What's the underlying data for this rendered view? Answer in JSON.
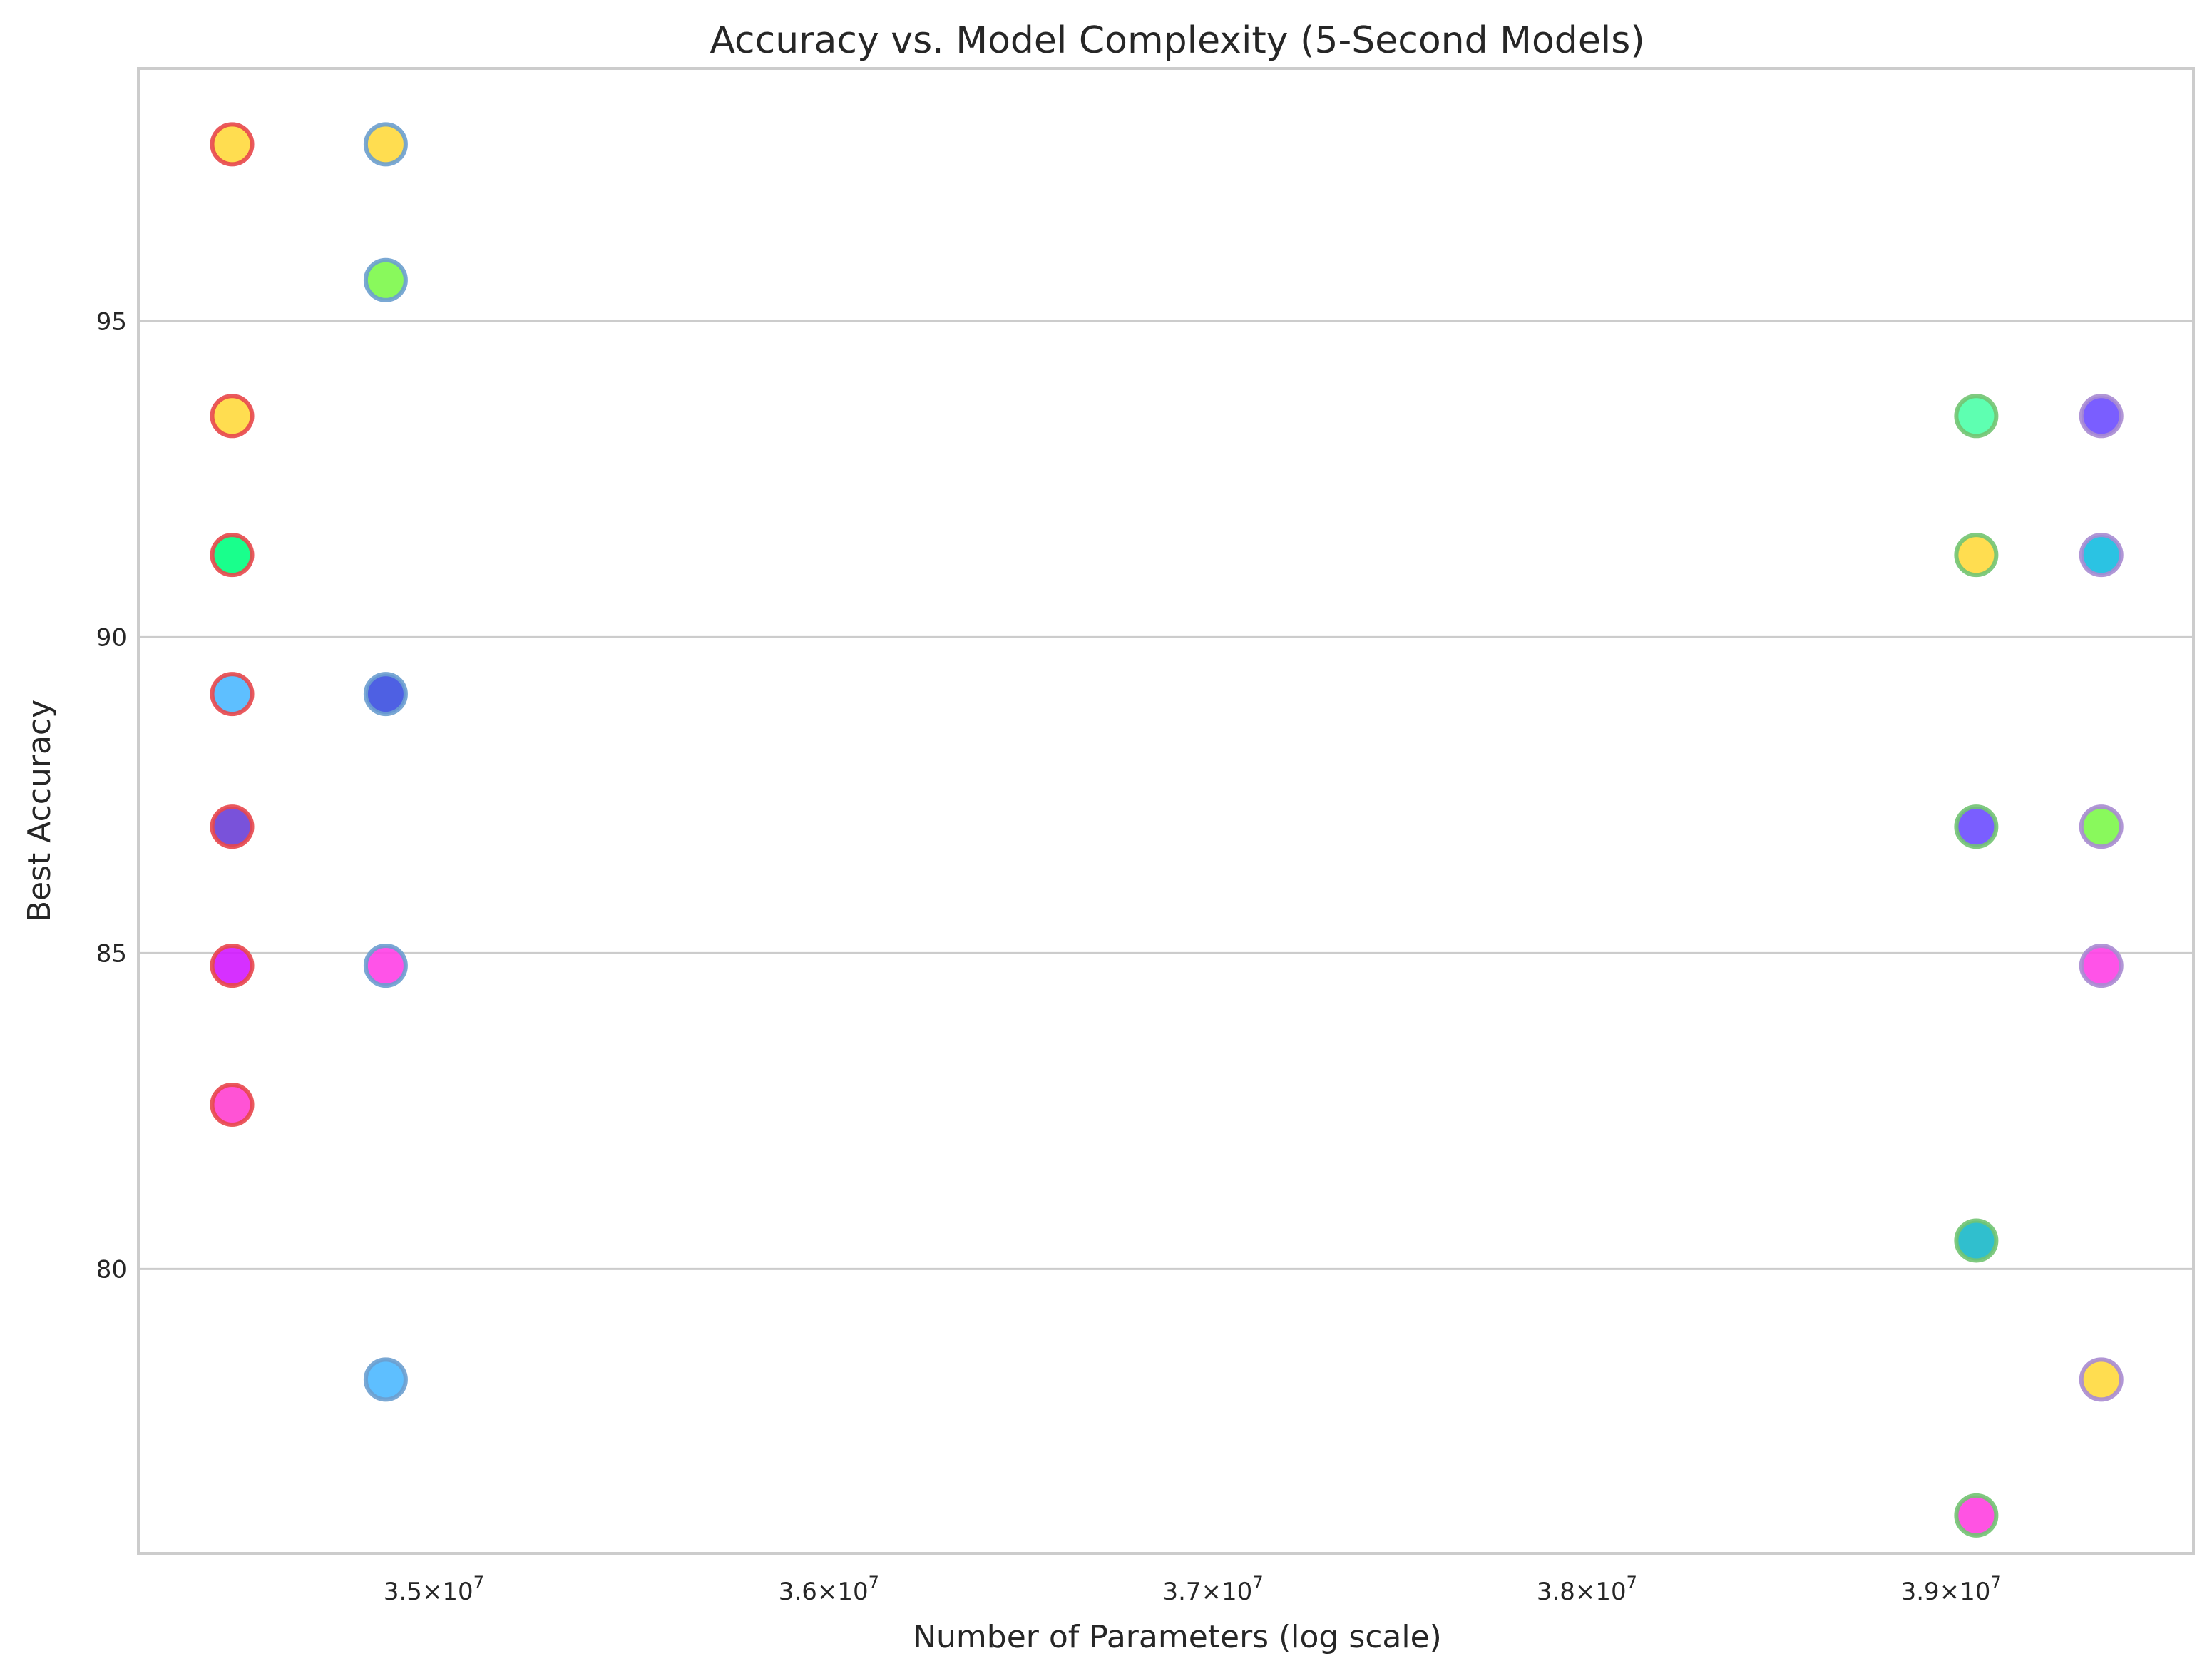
{
  "chart_data": {
    "type": "scatter",
    "title": "Accuracy vs. Model Complexity (5-Second Models)",
    "xlabel": "Number of Parameters (log scale)",
    "ylabel": "Best Accuracy",
    "x_scale": "log",
    "xlim": [
      34270000,
      39680000
    ],
    "ylim": [
      75.5,
      99.0
    ],
    "grid": "horizontal",
    "legend": "none",
    "x_ticks": [
      {
        "value": 35000000,
        "mantissa": "3.5",
        "exponent": "7"
      },
      {
        "value": 36000000,
        "mantissa": "3.6",
        "exponent": "7"
      },
      {
        "value": 37000000,
        "mantissa": "3.7",
        "exponent": "7"
      },
      {
        "value": 38000000,
        "mantissa": "3.8",
        "exponent": "7"
      },
      {
        "value": 39000000,
        "mantissa": "3.9",
        "exponent": "7"
      }
    ],
    "y_ticks": [
      {
        "value": 80,
        "label": "80"
      },
      {
        "value": 85,
        "label": "85"
      },
      {
        "value": 90,
        "label": "90"
      },
      {
        "value": 95,
        "label": "95"
      }
    ],
    "series": [
      {
        "edge_color": "#e8474b",
        "points": [
          {
            "x": 34500000,
            "y": 97.8,
            "color": "#ffd93d"
          },
          {
            "x": 34500000,
            "y": 93.5,
            "color": "#ffd93d"
          },
          {
            "x": 34500000,
            "y": 91.3,
            "color": "#00ff7f"
          },
          {
            "x": 34500000,
            "y": 89.1,
            "color": "#4db8ff"
          },
          {
            "x": 34500000,
            "y": 87.0,
            "color": "#6a3fd6"
          },
          {
            "x": 34500000,
            "y": 84.8,
            "color": "#d11aff"
          },
          {
            "x": 34500000,
            "y": 82.6,
            "color": "#ff40d0"
          }
        ]
      },
      {
        "edge_color": "#6b9fcf",
        "points": [
          {
            "x": 34880000,
            "y": 97.8,
            "color": "#ffd93d"
          },
          {
            "x": 34880000,
            "y": 95.65,
            "color": "#7cf84a"
          },
          {
            "x": 34880000,
            "y": 89.1,
            "color": "#3b4fe0"
          },
          {
            "x": 34880000,
            "y": 84.8,
            "color": "#ff40e6"
          },
          {
            "x": 34880000,
            "y": 78.25,
            "color": "#4db8ff"
          }
        ]
      },
      {
        "edge_color": "#72c472",
        "points": [
          {
            "x": 39070000,
            "y": 93.5,
            "color": "#4dffa8"
          },
          {
            "x": 39070000,
            "y": 91.3,
            "color": "#ffd93d"
          },
          {
            "x": 39070000,
            "y": 87.0,
            "color": "#6b4dff"
          },
          {
            "x": 39070000,
            "y": 80.45,
            "color": "#1ab8c9"
          },
          {
            "x": 39070000,
            "y": 76.1,
            "color": "#ff40e0"
          }
        ]
      },
      {
        "edge_color": "#a98bd1",
        "points": [
          {
            "x": 39420000,
            "y": 93.5,
            "color": "#6b4dff"
          },
          {
            "x": 39420000,
            "y": 91.3,
            "color": "#14bde0"
          },
          {
            "x": 39420000,
            "y": 87.0,
            "color": "#7cf84a"
          },
          {
            "x": 39420000,
            "y": 84.8,
            "color": "#ff40e6"
          },
          {
            "x": 39420000,
            "y": 78.25,
            "color": "#ffd93d"
          }
        ]
      }
    ]
  }
}
